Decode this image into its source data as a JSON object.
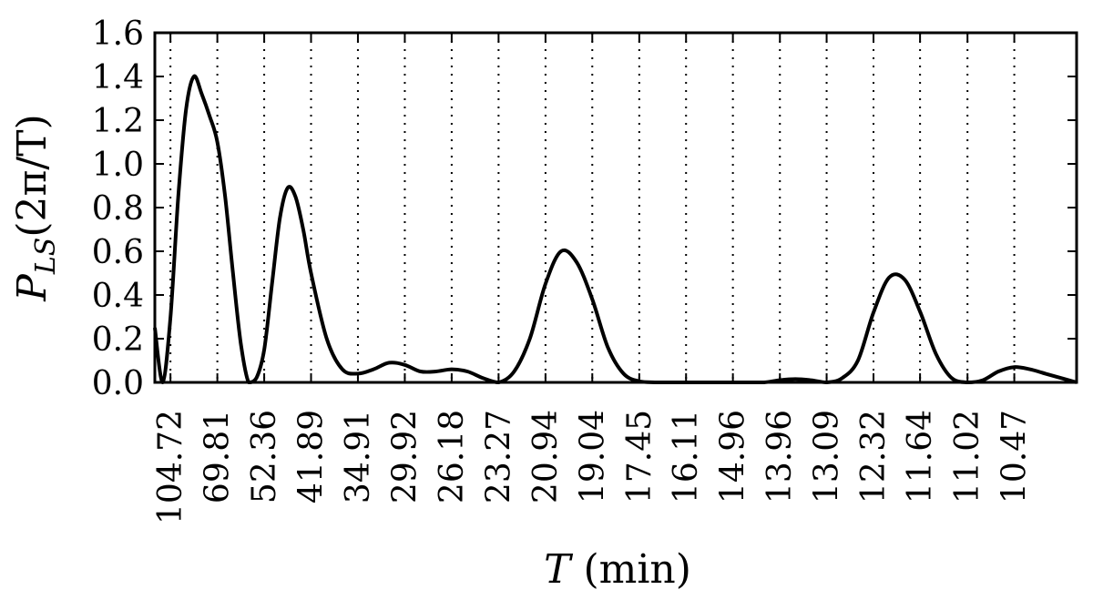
{
  "chart_data": {
    "type": "line",
    "title": "",
    "xlabel_var": "T",
    "xlabel_unit": " (min)",
    "ylabel_var": "P",
    "ylabel_sub": "LS",
    "ylabel_arg": "(2π/T)",
    "ylim": [
      0,
      1.6
    ],
    "yticks": [
      "0.0",
      "0.2",
      "0.4",
      "0.6",
      "0.8",
      "1.0",
      "1.2",
      "1.4",
      "1.6"
    ],
    "x_axis_note": "x axis is angular frequency ω = 2π/T (1/min); ticks labeled with period T in min",
    "xlim": [
      0.05,
      0.64
    ],
    "xtick_labels": [
      "104.72",
      "69.81",
      "52.36",
      "41.89",
      "34.91",
      "29.92",
      "26.18",
      "23.27",
      "20.94",
      "19.04",
      "17.45",
      "16.11",
      "14.96",
      "13.96",
      "13.09",
      "12.32",
      "11.64",
      "11.02",
      "10.47"
    ],
    "grid": "vertical dotted",
    "series": [
      {
        "x": [
          0.05,
          0.055,
          0.06,
          0.065,
          0.07,
          0.075,
          0.08,
          0.085,
          0.09,
          0.095,
          0.1,
          0.105,
          0.11,
          0.115,
          0.12,
          0.125,
          0.13,
          0.135,
          0.14,
          0.145,
          0.15,
          0.16,
          0.17,
          0.18,
          0.19,
          0.2,
          0.21,
          0.22,
          0.23,
          0.24,
          0.25,
          0.26,
          0.27,
          0.28,
          0.29,
          0.3,
          0.31,
          0.32,
          0.33,
          0.34,
          0.35,
          0.36,
          0.37,
          0.38,
          0.39,
          0.4,
          0.41,
          0.42,
          0.43,
          0.44,
          0.45,
          0.46,
          0.47,
          0.48,
          0.49,
          0.5,
          0.51,
          0.52,
          0.53,
          0.54,
          0.55,
          0.56,
          0.57,
          0.58,
          0.59,
          0.6,
          0.61,
          0.62,
          0.63,
          0.64
        ],
        "y": [
          0.25,
          0.0,
          0.3,
          0.85,
          1.25,
          1.4,
          1.32,
          1.22,
          1.1,
          0.85,
          0.5,
          0.18,
          0.0,
          0.02,
          0.15,
          0.45,
          0.75,
          0.89,
          0.85,
          0.7,
          0.5,
          0.2,
          0.06,
          0.04,
          0.06,
          0.09,
          0.08,
          0.05,
          0.05,
          0.06,
          0.05,
          0.02,
          0.0,
          0.05,
          0.2,
          0.45,
          0.6,
          0.55,
          0.38,
          0.16,
          0.04,
          0.005,
          0.0,
          0.0,
          0.0,
          0.0,
          0.0,
          0.0,
          0.0,
          0.0,
          0.01,
          0.015,
          0.01,
          0.0,
          0.02,
          0.1,
          0.32,
          0.48,
          0.47,
          0.32,
          0.13,
          0.02,
          0.0,
          0.01,
          0.05,
          0.07,
          0.06,
          0.04,
          0.02,
          0.0
        ]
      }
    ]
  }
}
